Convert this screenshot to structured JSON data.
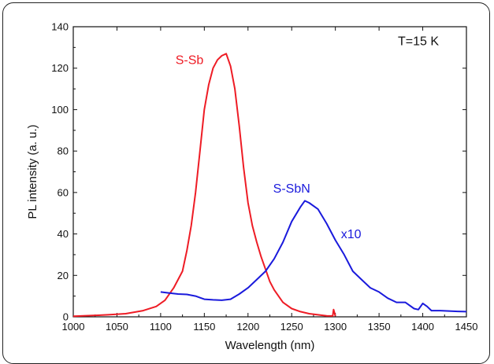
{
  "chart_data": {
    "type": "line",
    "xlabel": "Wavelength (nm)",
    "ylabel": "PL intensity (a. u.)",
    "xlim": [
      1000,
      1450
    ],
    "ylim": [
      0,
      140
    ],
    "x_ticks": [
      1000,
      1050,
      1100,
      1150,
      1200,
      1250,
      1300,
      1350,
      1400,
      1450
    ],
    "y_ticks": [
      0,
      20,
      40,
      60,
      80,
      100,
      120,
      140
    ],
    "grid": false,
    "annotations": [
      {
        "id": "temp",
        "text": "T=15 K",
        "x": 1395,
        "y": 131,
        "color": "#111111"
      },
      {
        "id": "s-sb-label",
        "text": "S-Sb",
        "x": 1133,
        "y": 122,
        "color": "#ee1c25"
      },
      {
        "id": "s-sbn-label",
        "text": "S-SbN",
        "x": 1250,
        "y": 60,
        "color": "#1a1adc"
      },
      {
        "id": "x10-label",
        "text": "x10",
        "x": 1318,
        "y": 38,
        "color": "#1a1adc"
      }
    ],
    "series": [
      {
        "id": "s-sb",
        "color": "#ee1c25",
        "x": [
          1000,
          1020,
          1040,
          1060,
          1080,
          1095,
          1105,
          1115,
          1125,
          1130,
          1135,
          1140,
          1145,
          1150,
          1155,
          1160,
          1165,
          1170,
          1175,
          1180,
          1185,
          1190,
          1195,
          1200,
          1205,
          1210,
          1215,
          1220,
          1225,
          1230,
          1240,
          1250,
          1260,
          1270,
          1280,
          1290,
          1297,
          1298,
          1300
        ],
        "y": [
          0.3,
          0.6,
          1,
          1.5,
          3,
          5,
          8,
          14,
          22,
          32,
          44,
          60,
          80,
          100,
          112,
          120,
          124,
          126,
          127,
          121,
          110,
          92,
          72,
          55,
          44,
          36,
          29,
          23,
          17,
          13,
          7,
          4,
          2.5,
          1.5,
          1,
          0.5,
          0.4,
          3.5,
          0.3
        ]
      },
      {
        "id": "s-sbn",
        "color": "#1a1adc",
        "x": [
          1100,
          1110,
          1120,
          1130,
          1140,
          1150,
          1160,
          1170,
          1180,
          1190,
          1200,
          1210,
          1220,
          1230,
          1240,
          1250,
          1260,
          1265,
          1270,
          1280,
          1290,
          1300,
          1310,
          1320,
          1330,
          1340,
          1350,
          1360,
          1370,
          1380,
          1390,
          1395,
          1400,
          1405,
          1410,
          1420,
          1430,
          1440,
          1450
        ],
        "y": [
          12,
          11.5,
          11,
          10.8,
          10,
          8.5,
          8.2,
          8,
          8.5,
          11,
          14,
          18,
          22,
          28,
          36,
          46,
          53,
          56,
          55,
          52,
          45,
          37,
          30,
          22,
          18,
          14,
          12,
          9,
          7,
          7,
          4,
          3.5,
          6.5,
          5,
          3,
          3,
          2.8,
          2.6,
          2.5
        ]
      }
    ]
  }
}
